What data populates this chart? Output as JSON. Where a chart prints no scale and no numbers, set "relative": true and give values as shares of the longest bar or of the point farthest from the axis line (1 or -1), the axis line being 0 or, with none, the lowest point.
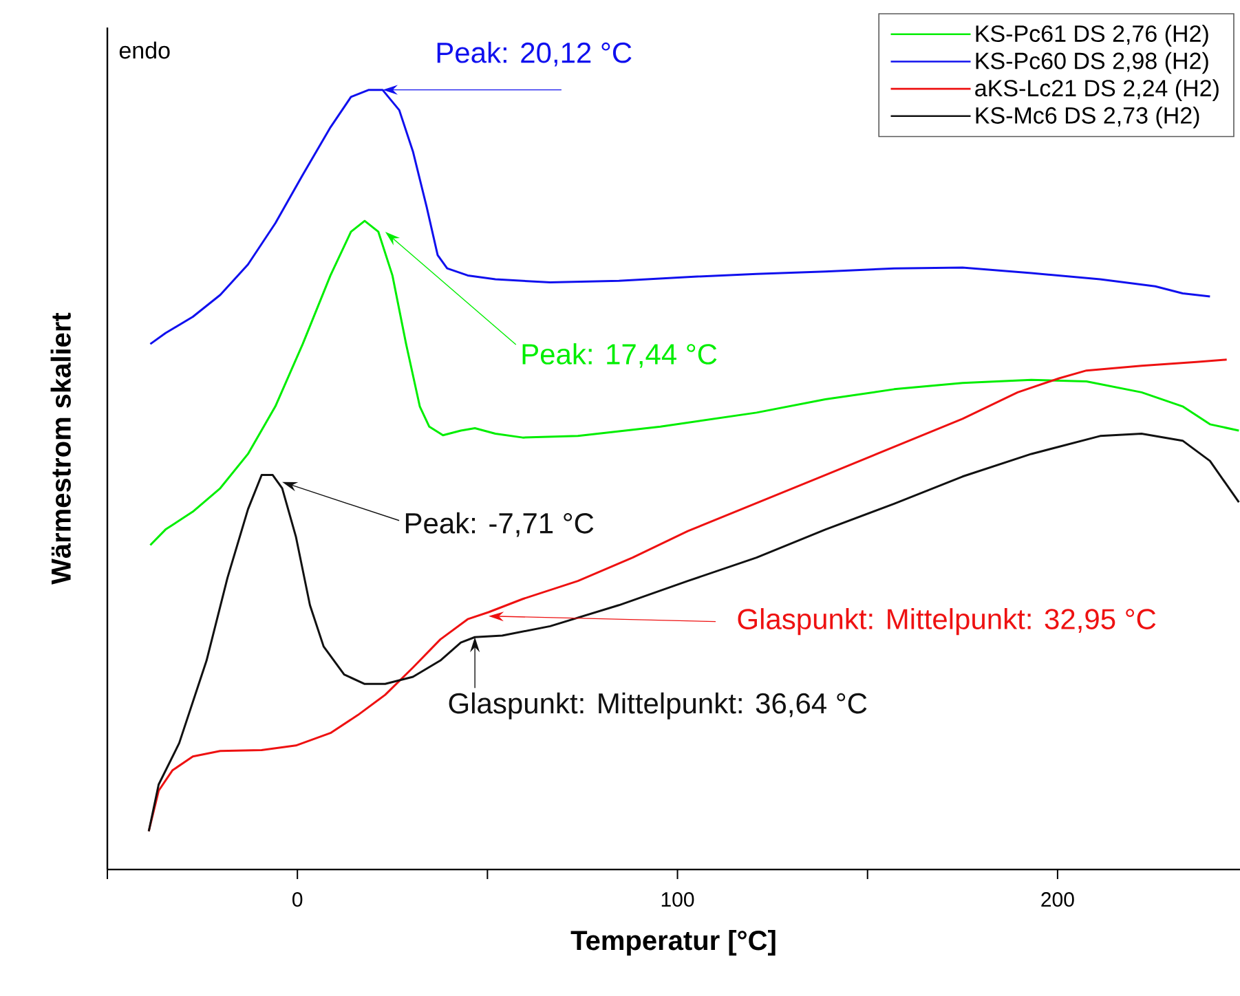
{
  "chart_data": {
    "type": "line",
    "xlabel": "Temperatur [°C]",
    "ylabel": "Wärmestrom skaliert",
    "relative": true,
    "tick_labels": "x",
    "xlim": [
      -50,
      248
    ],
    "xticks": [
      {
        "value": -50,
        "label": null
      },
      0,
      {
        "value": 50,
        "label": null
      },
      100,
      {
        "value": 150,
        "label": null
      },
      200
    ],
    "legend": "top right",
    "grid": false,
    "marker": "none",
    "line_style": "solid",
    "series": [
      {
        "name": "KS-Pc61      DS 2,76 (H2)",
        "color": "#00ee00",
        "x": [
          -38.7,
          -34.7,
          -27.5,
          -20.3,
          -13.0,
          -5.8,
          1.4,
          8.7,
          14.1,
          17.7,
          21.3,
          25.0,
          28.6,
          32.2,
          34.7,
          38.3,
          43.0,
          46.7,
          52.1,
          59.3,
          73.8,
          95.5,
          120.8,
          138.9,
          157.0,
          175.0,
          193.1,
          207.6,
          222.1,
          232.9,
          240.1,
          247.7
        ],
        "values": [
          0.416,
          0.436,
          0.459,
          0.489,
          0.533,
          0.594,
          0.674,
          0.762,
          0.818,
          0.832,
          0.818,
          0.762,
          0.674,
          0.594,
          0.568,
          0.557,
          0.563,
          0.566,
          0.559,
          0.554,
          0.556,
          0.568,
          0.586,
          0.603,
          0.616,
          0.624,
          0.628,
          0.626,
          0.612,
          0.594,
          0.571,
          0.563
        ]
      },
      {
        "name": "KS-Pc60      DS 2,98 (H2)",
        "color": "#1010ee",
        "x": [
          -38.7,
          -34.7,
          -27.5,
          -20.3,
          -13.0,
          -5.8,
          1.4,
          8.7,
          14.1,
          18.8,
          22.4,
          26.8,
          30.4,
          34.0,
          36.9,
          39.4,
          44.8,
          52.1,
          66.5,
          84.6,
          102.7,
          120.8,
          138.9,
          157.0,
          175.0,
          193.1,
          211.2,
          225.7,
          232.9,
          240.1
        ],
        "values": [
          0.674,
          0.688,
          0.709,
          0.737,
          0.776,
          0.829,
          0.891,
          0.952,
          0.991,
          1.0,
          1.0,
          0.974,
          0.921,
          0.85,
          0.788,
          0.771,
          0.762,
          0.757,
          0.753,
          0.755,
          0.76,
          0.764,
          0.767,
          0.771,
          0.772,
          0.765,
          0.757,
          0.748,
          0.739,
          0.735
        ]
      },
      {
        "name": "aKS-Lc21    DS 2,24 (H2)",
        "color": "#ee1111",
        "x": [
          -39.1,
          -36.5,
          -32.9,
          -27.5,
          -20.3,
          -9.4,
          -0.4,
          8.7,
          15.9,
          23.1,
          30.4,
          37.6,
          44.8,
          50.3,
          59.3,
          73.8,
          88.2,
          102.7,
          138.9,
          175.0,
          189.5,
          200.4,
          207.6,
          222.1,
          236.5,
          244.5
        ],
        "values": [
          0.049,
          0.101,
          0.127,
          0.145,
          0.152,
          0.153,
          0.159,
          0.175,
          0.198,
          0.224,
          0.259,
          0.295,
          0.321,
          0.33,
          0.347,
          0.37,
          0.4,
          0.434,
          0.506,
          0.578,
          0.612,
          0.63,
          0.64,
          0.646,
          0.651,
          0.654
        ]
      },
      {
        "name": "KS-Mc6       DS 2,73 (H2)",
        "color": "#111111",
        "x": [
          -39.1,
          -36.5,
          -31.1,
          -23.9,
          -18.4,
          -13.0,
          -9.4,
          -6.5,
          -4.0,
          -0.4,
          3.3,
          6.9,
          12.3,
          17.7,
          23.1,
          30.4,
          37.6,
          43.0,
          46.7,
          53.9,
          66.5,
          84.6,
          102.7,
          120.8,
          138.9,
          157.0,
          175.0,
          193.1,
          211.2,
          222.1,
          232.9,
          240.1,
          247.7
        ],
        "values": [
          0.049,
          0.109,
          0.162,
          0.268,
          0.374,
          0.462,
          0.506,
          0.506,
          0.489,
          0.427,
          0.339,
          0.286,
          0.25,
          0.238,
          0.238,
          0.247,
          0.268,
          0.291,
          0.298,
          0.3,
          0.312,
          0.339,
          0.37,
          0.4,
          0.436,
          0.469,
          0.504,
          0.533,
          0.556,
          0.559,
          0.55,
          0.524,
          0.471
        ]
      }
    ],
    "annotations": [
      "endo",
      {
        "text": "Peak: 20,12 °C",
        "x": 22.4,
        "y": 1.0
      },
      {
        "text": "Peak: 17,44 °C",
        "x": 23.1,
        "y": 0.818
      },
      {
        "text": "Peak: -7,71 °C",
        "x": -4.0,
        "y": 0.497
      },
      {
        "text": "Glaspunkt: Mittelpunkt: 32,95 °C",
        "x": 50.3,
        "y": 0.325
      },
      {
        "text": "Glaspunkt: Mittelpunkt: 36,64 °C",
        "x": 46.7,
        "y": 0.298
      }
    ]
  }
}
